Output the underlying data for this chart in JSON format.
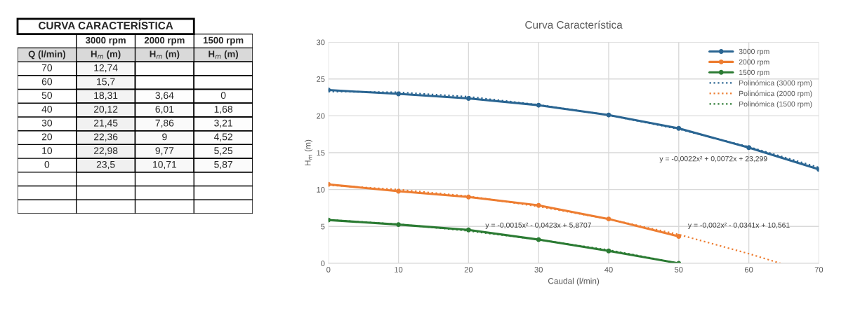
{
  "chart_data": [
    {
      "type": "heatmap",
      "categories": [
        "3000 rpm",
        "2000 rpm",
        "1500 rpm"
      ],
      "y_categories": [
        "70",
        "60",
        "50",
        "40",
        "30",
        "20",
        "10",
        "0"
      ],
      "cells": [
        [
          12.74,
          null,
          null
        ],
        [
          15.7,
          null,
          null
        ],
        [
          18.31,
          3.64,
          0
        ],
        [
          20.12,
          6.01,
          1.68
        ],
        [
          21.45,
          7.86,
          3.21
        ],
        [
          22.36,
          9,
          4.52
        ],
        [
          22.98,
          9.77,
          5.25
        ],
        [
          23.5,
          10.71,
          5.87
        ]
      ],
      "cell_labels": [
        [
          "12,74",
          null,
          null
        ],
        [
          "15,7",
          null,
          null
        ],
        [
          "18,31",
          "3,64",
          "0"
        ],
        [
          "20,12",
          "6,01",
          "1,68"
        ],
        [
          "21,45",
          "7,86",
          "3,21"
        ],
        [
          "22,36",
          "9",
          "4,52"
        ],
        [
          "22,98",
          "9,77",
          "5,25"
        ],
        [
          "23,5",
          "10,71",
          "5,87"
        ]
      ],
      "annotations": [
        "CURVA CARACTERÍSTICA",
        "Q (l/min)",
        "H$_{m}$ (m)"
      ]
    },
    {
      "type": "line",
      "title": "Curva Característica",
      "xlabel": "Caudal (l/min)",
      "ylabel": "H$_{m}$ (m)",
      "xlim": [
        0,
        70
      ],
      "xticks": [
        0,
        10,
        20,
        30,
        40,
        50,
        60,
        70
      ],
      "ylim": [
        0,
        30
      ],
      "yticks": [
        0,
        5,
        10,
        15,
        20,
        25,
        30
      ],
      "grid": true,
      "legend": "top right",
      "series": [
        {
          "name": "3000 rpm",
          "type": "line",
          "color": "#2a6592",
          "marker": "circle",
          "line_style": "solid",
          "x": [
            0,
            10,
            20,
            30,
            40,
            50,
            60,
            70
          ],
          "values": [
            23.5,
            22.98,
            22.36,
            21.45,
            20.12,
            18.31,
            15.7,
            12.74
          ]
        },
        {
          "name": "2000 rpm",
          "type": "line",
          "color": "#ed7d31",
          "marker": "circle",
          "line_style": "solid",
          "x": [
            0,
            10,
            20,
            30,
            40,
            50
          ],
          "values": [
            10.71,
            9.77,
            9,
            7.86,
            6.01,
            3.64
          ]
        },
        {
          "name": "1500 rpm",
          "type": "line",
          "color": "#2b7b33",
          "marker": "circle",
          "line_style": "solid",
          "x": [
            0,
            10,
            20,
            30,
            40,
            50
          ],
          "values": [
            5.87,
            5.25,
            4.52,
            3.21,
            1.68,
            0
          ]
        },
        {
          "name": "Polinómica (3000 rpm)",
          "type": "line",
          "color": "#2a6592",
          "marker": "none",
          "line_style": "dotted",
          "x": [
            0,
            10,
            20,
            30,
            40,
            50,
            60,
            70
          ],
          "values": [
            23.3,
            23.2,
            22.6,
            21.5,
            20.1,
            18.2,
            15.8,
            13.0
          ]
        },
        {
          "name": "Polinómica (2000 rpm)",
          "type": "line",
          "color": "#ed7d31",
          "marker": "none",
          "line_style": "dotted",
          "x": [
            0,
            10,
            20,
            30,
            40,
            50,
            60,
            64.5
          ],
          "values": [
            10.6,
            10.0,
            9.1,
            7.7,
            6.0,
            3.9,
            1.3,
            0
          ]
        },
        {
          "name": "Polinómica (1500 rpm)",
          "type": "line",
          "color": "#2b7b33",
          "marker": "none",
          "line_style": "dotted",
          "x": [
            0,
            10,
            20,
            30,
            40,
            50
          ],
          "values": [
            5.9,
            5.3,
            4.4,
            3.2,
            1.8,
            0
          ]
        }
      ],
      "annotations": [
        "y = -0,0022x² + 0,0072x + 23,299",
        "y = -0,0015x² - 0,0423x + 5,8707",
        "y = -0,002x² - 0,0341x + 10,561"
      ]
    }
  ]
}
